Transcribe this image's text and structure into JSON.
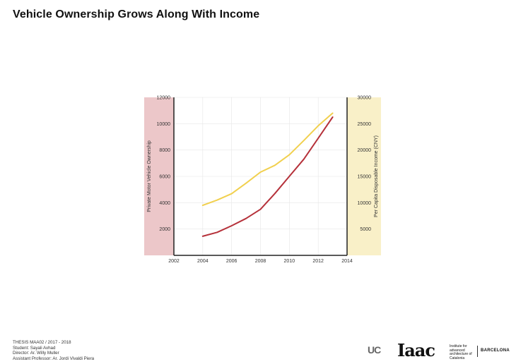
{
  "page": {
    "title": "Vehicle Ownership Grows Along With Income"
  },
  "credits": {
    "line1": "THESIS MAA02 / 2017 - 2018",
    "line2": "Student: Sayali Avhad",
    "line3": "Director: Ar. Willy Muller",
    "line4": "Assistant Professor: Ar. Jordi Vivaldi Piera"
  },
  "logos": {
    "ucl_text": "UC",
    "ucl_sub": "",
    "iaac_text": "Iaac",
    "iaac_sub": "Institute for advanced architecture of Catalonia",
    "barcelona": "BARCELONA"
  },
  "colors": {
    "left_band": "#ecc7c9",
    "right_band": "#f9f0c8",
    "vehicle_line": "#b5313a",
    "income_line": "#f1d04e",
    "grid": "#e6e6e6"
  },
  "chart_data": {
    "type": "line",
    "title": "Vehicle Ownership Grows Along With Income",
    "x": [
      2004,
      2005,
      2006,
      2007,
      2008,
      2009,
      2010,
      2011,
      2012,
      2013
    ],
    "xlim": [
      2002,
      2014
    ],
    "xticks": [
      2002,
      2004,
      2006,
      2008,
      2010,
      2012,
      2014
    ],
    "y_left": {
      "label": "Private Motor Vehicle Ownership",
      "ylim": [
        0,
        12000
      ],
      "ticks": [
        2000,
        4000,
        6000,
        8000,
        10000,
        12000
      ]
    },
    "y_right": {
      "label": "Per Capita Disposable Income (CNY)",
      "ylim": [
        0,
        30000
      ],
      "ticks": [
        5000,
        10000,
        15000,
        20000,
        25000,
        30000
      ]
    },
    "series": [
      {
        "axis": "left",
        "color": "#b5313a",
        "values": [
          1450,
          1750,
          2250,
          2800,
          3500,
          4700,
          6000,
          7300,
          8900,
          10500
        ]
      },
      {
        "axis": "right",
        "color": "#f1d04e",
        "values": [
          9500,
          10500,
          11700,
          13700,
          15800,
          17100,
          19100,
          21800,
          24600,
          27000
        ]
      }
    ],
    "grid": true,
    "legend": "none"
  }
}
